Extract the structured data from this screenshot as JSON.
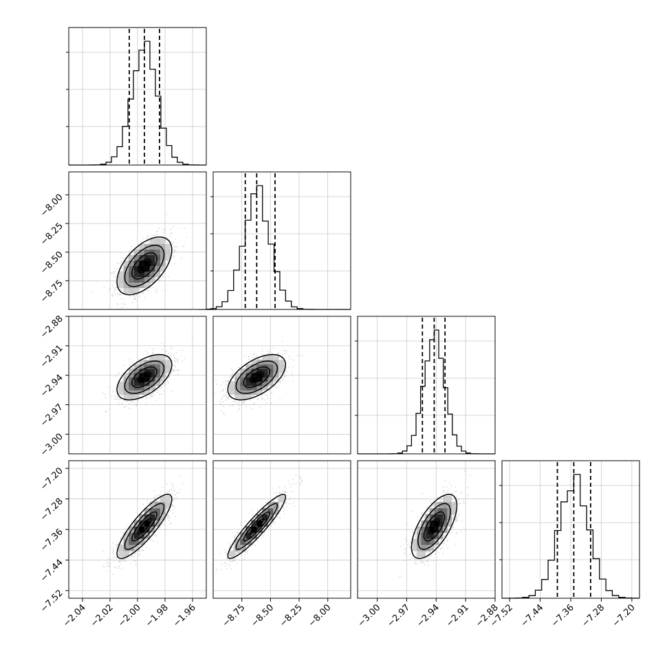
{
  "figure": {
    "type": "corner-plot"
  },
  "chart_data": {
    "type": "corner",
    "parameters": [
      {
        "range": [
          -2.05,
          -1.95
        ],
        "ticks": [
          -2.04,
          -2.02,
          -2.0,
          -1.98,
          -1.96
        ],
        "tick_labels": [
          "−2.04",
          "−2.02",
          "−2.00",
          "−1.98",
          "−1.96"
        ],
        "quantiles": [
          -2.006,
          -1.995,
          -1.984
        ],
        "mean": -1.995,
        "sd": 0.0095
      },
      {
        "range": [
          -9.0,
          -7.8
        ],
        "ticks": [
          -8.75,
          -8.5,
          -8.25,
          -8.0
        ],
        "tick_labels": [
          "−8.75",
          "−8.50",
          "−8.25",
          "−8.00"
        ],
        "quantiles": [
          -8.72,
          -8.62,
          -8.46
        ],
        "mean": -8.62,
        "sd": 0.12
      },
      {
        "range": [
          -3.02,
          -2.88
        ],
        "ticks": [
          -3.0,
          -2.97,
          -2.94,
          -2.91,
          -2.88
        ],
        "tick_labels": [
          "−3.00",
          "−2.97",
          "−2.94",
          "−2.91",
          "−2.88"
        ],
        "quantiles": [
          -2.954,
          -2.942,
          -2.931
        ],
        "mean": -2.942,
        "sd": 0.011
      },
      {
        "range": [
          -7.54,
          -7.18
        ],
        "ticks": [
          -7.52,
          -7.44,
          -7.36,
          -7.28,
          -7.2
        ],
        "tick_labels": [
          "−7.52",
          "−7.44",
          "−7.36",
          "−7.28",
          "−7.20"
        ],
        "quantiles": [
          -7.395,
          -7.352,
          -7.308
        ],
        "mean": -7.352,
        "sd": 0.04
      }
    ],
    "correlations": [
      [
        1.0,
        0.55,
        0.55,
        0.85
      ],
      [
        0.55,
        1.0,
        0.55,
        0.92
      ],
      [
        0.55,
        0.55,
        1.0,
        0.65
      ],
      [
        0.85,
        0.92,
        0.65,
        1.0
      ]
    ],
    "histogram_style": "step",
    "quantile_lines": "dashed",
    "contours": "filled-2d-hist-with-levels",
    "grid": true
  }
}
